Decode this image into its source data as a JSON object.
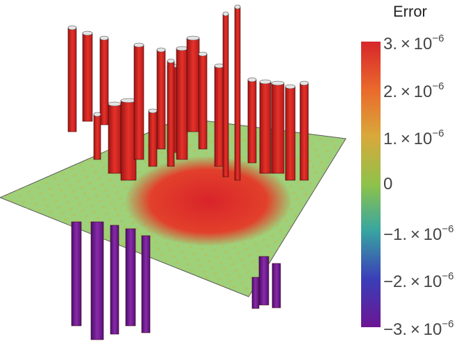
{
  "chart_data": {
    "type": "surface",
    "legend": {
      "title": "Error",
      "placement": "right",
      "range": [
        -3e-06,
        3e-06
      ],
      "ticks": [
        {
          "value": 3e-06,
          "mant": "3.",
          "exp": "-6"
        },
        {
          "value": 2e-06,
          "mant": "2.",
          "exp": "-6"
        },
        {
          "value": 1e-06,
          "mant": "1.",
          "exp": "-6"
        },
        {
          "value": 0,
          "mant": "0",
          "exp": ""
        },
        {
          "value": -1e-06,
          "mant": "-1.",
          "exp": "-6"
        },
        {
          "value": -2e-06,
          "mant": "-2.",
          "exp": "-6"
        },
        {
          "value": -3e-06,
          "mant": "-3.",
          "exp": "-6"
        }
      ],
      "colors": [
        "#d7262b",
        "#ea6a2c",
        "#d9a83a",
        "#8fc24a",
        "#38a6a0",
        "#3a3fb8",
        "#6c1594"
      ]
    },
    "z_clip": [
      -3e-06,
      3e-06
    ],
    "peaks": [
      {
        "x": 0.4,
        "y": 0.5,
        "z": 3e-06
      },
      {
        "x": 0.55,
        "y": 0.5,
        "z": 3e-06
      },
      {
        "x": 0.7,
        "y": 0.5,
        "z": 3e-06
      },
      {
        "x": 0.45,
        "y": 0.8,
        "z": 3e-06
      },
      {
        "x": 0.6,
        "y": 0.85,
        "z": 3e-06
      },
      {
        "x": 0.75,
        "y": 0.8,
        "z": 3e-06
      },
      {
        "x": 0.2,
        "y": 0.3,
        "z": -3e-06
      },
      {
        "x": 0.35,
        "y": 0.2,
        "z": -3e-06
      },
      {
        "x": 0.85,
        "y": 0.2,
        "z": -3e-06
      }
    ]
  }
}
